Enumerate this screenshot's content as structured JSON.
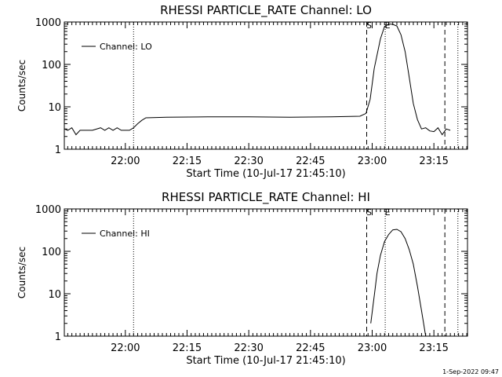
{
  "footer_text": "1-Sep-2022 09:47",
  "colors": {
    "background": "#ffffff",
    "ink": "#000000"
  },
  "chart_data": [
    {
      "type": "line",
      "title": "RHESSI PARTICLE_RATE Channel: LO",
      "xlabel": "Start Time (10-Jul-17 21:45:10)",
      "ylabel": "Counts/sec",
      "yscale": "log",
      "xlim": [
        "21:45:10",
        "23:23:10"
      ],
      "ylim": [
        1,
        1000
      ],
      "grid": false,
      "legend": {
        "placement": "top-left",
        "entries": [
          "Channel: LO"
        ]
      },
      "x_ticks": [
        "22:00",
        "22:15",
        "22:30",
        "22:45",
        "23:00",
        "23:15"
      ],
      "y_ticks": [
        "1",
        "10",
        "100",
        "1000"
      ],
      "markers": [
        {
          "time": "22:02:00",
          "style": "dotted",
          "label": ""
        },
        {
          "time": "22:58:40",
          "style": "dashed",
          "label": "S"
        },
        {
          "time": "23:03:10",
          "style": "dotted",
          "label": "E"
        },
        {
          "time": "23:17:40",
          "style": "dashed",
          "label": ""
        },
        {
          "time": "23:20:50",
          "style": "dotted",
          "label": ""
        }
      ],
      "series": [
        {
          "name": "Channel: LO",
          "x": [
            "21:45:10",
            "21:46:00",
            "21:47:00",
            "21:48:00",
            "21:49:00",
            "21:50:00",
            "21:52:00",
            "21:54:00",
            "21:55:00",
            "21:56:00",
            "21:57:00",
            "21:58:00",
            "21:59:00",
            "22:00:00",
            "22:01:00",
            "22:02:00",
            "22:03:00",
            "22:04:00",
            "22:05:00",
            "22:10:00",
            "22:20:00",
            "22:30:00",
            "22:40:00",
            "22:50:00",
            "22:57:00",
            "22:58:30",
            "22:59:30",
            "23:00:30",
            "23:02:00",
            "23:03:00",
            "23:04:00",
            "23:05:00",
            "23:06:00",
            "23:07:00",
            "23:08:00",
            "23:09:00",
            "23:10:00",
            "23:11:00",
            "23:12:00",
            "23:13:00",
            "23:14:00",
            "23:15:00",
            "23:16:00",
            "23:17:00",
            "23:18:00",
            "23:19:00"
          ],
          "y": [
            3,
            2.8,
            3.2,
            2.2,
            2.8,
            2.8,
            2.8,
            3.2,
            2.8,
            3.2,
            2.8,
            3.2,
            2.8,
            2.8,
            2.8,
            3.2,
            4,
            4.8,
            5.5,
            5.7,
            5.8,
            5.8,
            5.7,
            5.8,
            6,
            7,
            15,
            80,
            400,
            780,
            900,
            880,
            800,
            500,
            200,
            50,
            12,
            5,
            3,
            3.2,
            2.7,
            2.6,
            3.2,
            2.2,
            3,
            2.8
          ]
        }
      ]
    },
    {
      "type": "line",
      "title": "RHESSI PARTICLE_RATE Channel: HI",
      "xlabel": "Start Time (10-Jul-17 21:45:10)",
      "ylabel": "Counts/sec",
      "yscale": "log",
      "xlim": [
        "21:45:10",
        "23:23:10"
      ],
      "ylim": [
        1,
        1000
      ],
      "grid": false,
      "legend": {
        "placement": "top-left",
        "entries": [
          "Channel: HI"
        ]
      },
      "x_ticks": [
        "22:00",
        "22:15",
        "22:30",
        "22:45",
        "23:00",
        "23:15"
      ],
      "y_ticks": [
        "1",
        "10",
        "100",
        "1000"
      ],
      "markers": [
        {
          "time": "22:02:00",
          "style": "dotted",
          "label": ""
        },
        {
          "time": "22:58:40",
          "style": "dashed",
          "label": "S"
        },
        {
          "time": "23:03:10",
          "style": "dotted",
          "label": "E"
        },
        {
          "time": "23:17:40",
          "style": "dashed",
          "label": ""
        },
        {
          "time": "23:20:50",
          "style": "dotted",
          "label": ""
        }
      ],
      "series": [
        {
          "name": "Channel: HI",
          "x": [
            "22:59:40",
            "23:00:10",
            "23:00:40",
            "23:01:10",
            "23:02:00",
            "23:03:00",
            "23:04:00",
            "23:05:00",
            "23:06:00",
            "23:07:00",
            "23:08:00",
            "23:09:00",
            "23:10:00",
            "23:11:00",
            "23:12:00",
            "23:13:00"
          ],
          "y": [
            2,
            5,
            12,
            30,
            80,
            170,
            250,
            320,
            330,
            290,
            200,
            110,
            50,
            15,
            4,
            1
          ]
        }
      ]
    }
  ]
}
